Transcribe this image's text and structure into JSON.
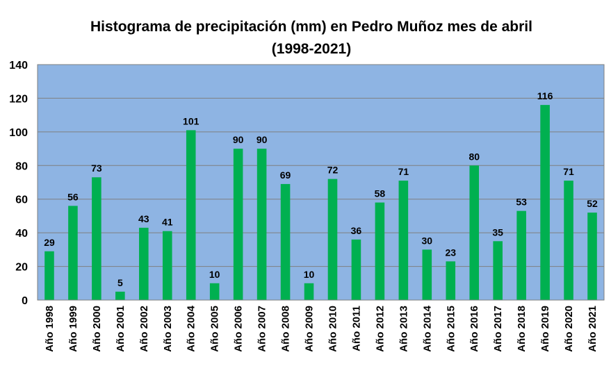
{
  "chart_data": {
    "type": "bar",
    "title_line1": "Histograma de precipitación (mm) en Pedro Muñoz mes de abril",
    "title_line2": "(1998-2021)",
    "xlabel": "",
    "ylabel": "",
    "ylim": [
      0,
      140
    ],
    "yticks": [
      0,
      20,
      40,
      60,
      80,
      100,
      120,
      140
    ],
    "grid": true,
    "legend": "none",
    "categories": [
      "Año 1998",
      "Año 1999",
      "Año 2000",
      "Año 2001",
      "Año 2002",
      "Año 2003",
      "Año 2004",
      "Año 2005",
      "Año 2006",
      "Año 2007",
      "Año 2008",
      "Año 2009",
      "Año 2010",
      "Año 2011",
      "Año 2012",
      "Año 2013",
      "Año 2014",
      "Año 2015",
      "Año 2016",
      "Año 2017",
      "Año 2018",
      "Año 2019",
      "Año 2020",
      "Año 2021"
    ],
    "values": [
      29,
      56,
      73,
      5,
      43,
      41,
      101,
      10,
      90,
      90,
      69,
      10,
      72,
      36,
      58,
      71,
      30,
      23,
      80,
      35,
      53,
      116,
      71,
      52
    ],
    "colors": {
      "bar": "#00b050",
      "plot_background": "#8eb4e3",
      "gridline": "#7f7f7f",
      "axis": "#7f7f7f"
    }
  }
}
